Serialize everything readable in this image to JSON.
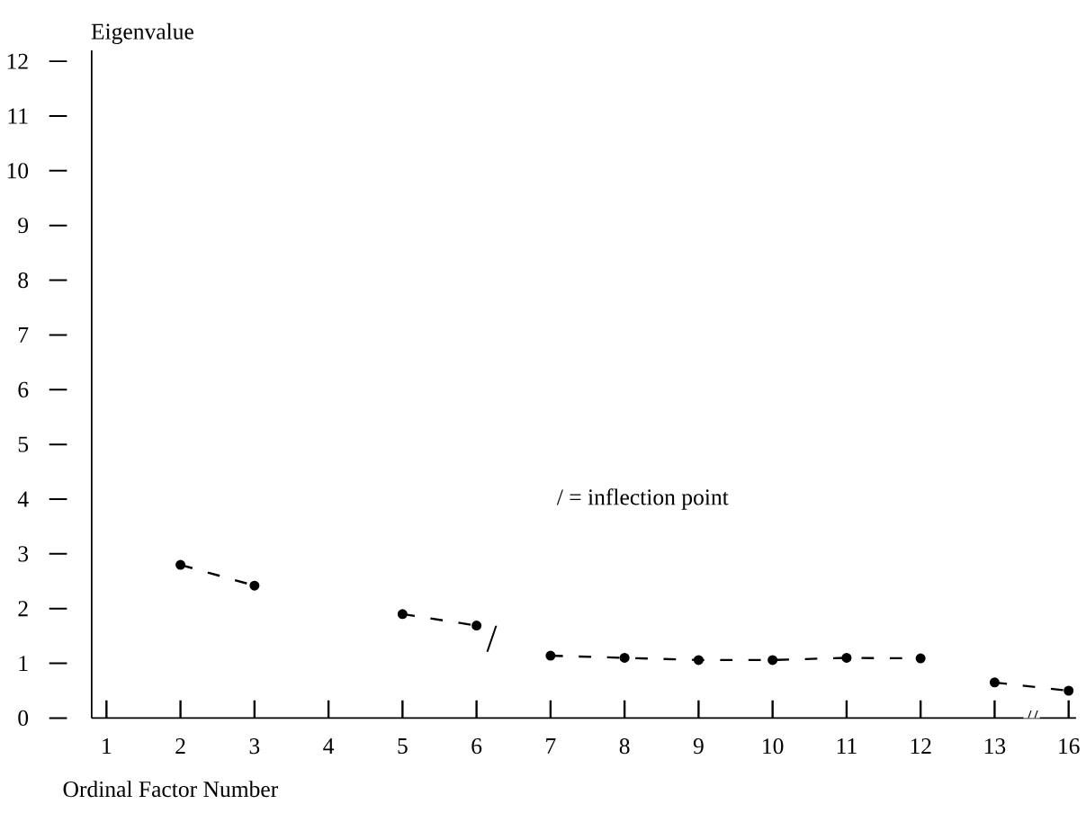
{
  "chart_data": {
    "type": "line",
    "ylabel": "Eigenvalue",
    "xlabel": "Ordinal Factor Number",
    "categories": [
      "1",
      "2",
      "3",
      "4",
      "5",
      "6",
      "7",
      "8",
      "9",
      "10",
      "11",
      "12",
      "13",
      "16"
    ],
    "series": [
      {
        "color": "#000000",
        "values": [
          null,
          2.8,
          2.42,
          null,
          null,
          null,
          null,
          null,
          null,
          null,
          null,
          null,
          null,
          null
        ]
      },
      {
        "color": "#000000",
        "values": [
          null,
          null,
          null,
          null,
          1.9,
          1.69,
          null,
          null,
          null,
          null,
          null,
          null,
          null,
          null
        ]
      },
      {
        "color": "#000000",
        "values": [
          null,
          null,
          null,
          null,
          null,
          null,
          1.14,
          1.1,
          1.06,
          1.06,
          1.1,
          1.09,
          null,
          null
        ]
      },
      {
        "color": "#000000",
        "values": [
          null,
          null,
          null,
          null,
          null,
          null,
          null,
          null,
          null,
          null,
          null,
          null,
          0.65,
          0.5
        ]
      }
    ],
    "ylim": [
      0,
      12.2
    ],
    "yticks": [
      0,
      1,
      2,
      3,
      4,
      5,
      6,
      7,
      8,
      9,
      10,
      11,
      12
    ],
    "annotations": [
      "/ = inflection point",
      "/",
      "//"
    ],
    "grid": false,
    "marker": "circle",
    "line_style": "dashed"
  }
}
